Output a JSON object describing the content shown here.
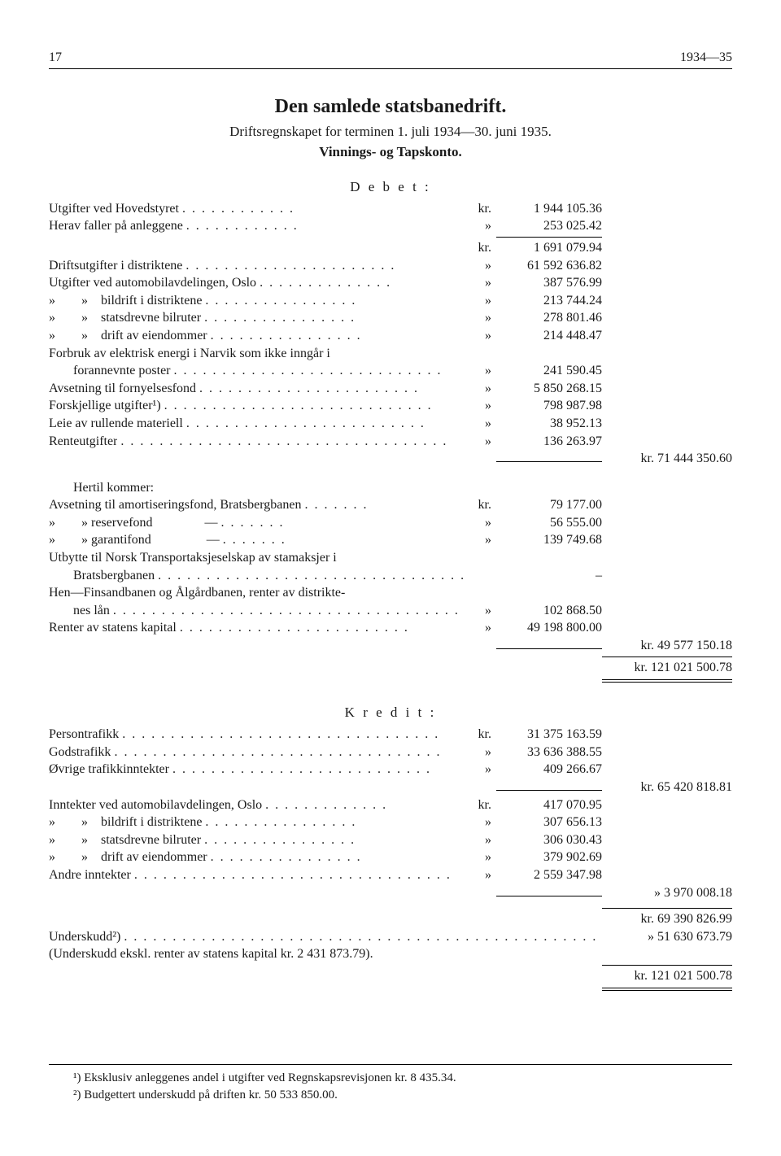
{
  "header": {
    "page": "17",
    "year": "1934—35"
  },
  "title": "Den samlede statsbanedrift.",
  "subtitle": "Driftsregnskapet for terminen 1. juli 1934—30. juni 1935.",
  "subtitle2": "Vinnings- og Tapskonto.",
  "debet_label": "D e b e t :",
  "kredit_label": "K r e d i t :",
  "debet": {
    "l1": {
      "label": "Utgifter ved Hovedstyret",
      "cur": "kr.",
      "val": "1 944 105.36"
    },
    "l2": {
      "label": "Herav faller på anleggene",
      "cur": "»",
      "val": "253 025.42"
    },
    "l3": {
      "cur": "kr.",
      "val": "1 691 079.94"
    },
    "l4": {
      "label": "Driftsutgifter i distriktene",
      "cur": "»",
      "val": "61 592 636.82"
    },
    "l5": {
      "label": "Utgifter ved automobilavdelingen, Oslo",
      "cur": "»",
      "val": "387 576.99"
    },
    "l6": {
      "label": "»        »    bildrift i distriktene",
      "cur": "»",
      "val": "213 744.24"
    },
    "l7": {
      "label": "»        »    statsdrevne bilruter",
      "cur": "»",
      "val": "278 801.46"
    },
    "l8": {
      "label": "»        »    drift av eiendommer",
      "cur": "»",
      "val": "214 448.47"
    },
    "l9a": {
      "label": "Forbruk av elektrisk energi i Narvik som ikke inngår i"
    },
    "l9b": {
      "label": "forannevnte poster",
      "cur": "»",
      "val": "241 590.45"
    },
    "l10": {
      "label": "Avsetning til fornyelsesfond",
      "cur": "»",
      "val": "5 850 268.15"
    },
    "l11": {
      "label": "Forskjellige utgifter¹)",
      "cur": "»",
      "val": "798 987.98"
    },
    "l12": {
      "label": "Leie av rullende materiell",
      "cur": "»",
      "val": "38 952.13"
    },
    "l13": {
      "label": "Renteutgifter",
      "cur": "»",
      "val": "136 263.97"
    },
    "total1": {
      "cur": "kr.",
      "val": "71 444 350.60"
    }
  },
  "hertil_label": "Hertil kommer:",
  "hertil": {
    "l1": {
      "label": "Avsetning til amortiseringsfond, Bratsbergbanen",
      "cur": "kr.",
      "val": "79 177.00"
    },
    "l2": {
      "label": "»        » reservefond                —",
      "cur": "»",
      "val": "56 555.00"
    },
    "l3": {
      "label": "»        » garantifond                 —",
      "cur": "»",
      "val": "139 749.68"
    },
    "l4a": {
      "label": "Utbytte til Norsk Transportaksjeselskap av stamaksjer i"
    },
    "l4b": {
      "label": "Bratsbergbanen",
      "val": "–"
    },
    "l5a": {
      "label": "Hen—Finsandbanen og Ålgårdbanen, renter av distrikte-"
    },
    "l5b": {
      "label": "nes lån",
      "cur": "»",
      "val": "102 868.50"
    },
    "l6": {
      "label": "Renter av statens kapital",
      "cur": "»",
      "val": "49 198 800.00"
    },
    "total2": {
      "cur": "kr.",
      "val": "49 577 150.18"
    },
    "grand": {
      "cur": "kr.",
      "val": "121 021 500.78"
    }
  },
  "kredit": {
    "l1": {
      "label": "Persontrafikk",
      "cur": "kr.",
      "val": "31 375 163.59"
    },
    "l2": {
      "label": "Godstrafikk",
      "cur": "»",
      "val": "33 636 388.55"
    },
    "l3": {
      "label": "Øvrige trafikkinntekter",
      "cur": "»",
      "val": "409 266.67"
    },
    "total3": {
      "cur": "kr.",
      "val": "65 420 818.81"
    },
    "l4": {
      "label": "Inntekter ved automobilavdelingen, Oslo",
      "cur": "kr.",
      "val": "417 070.95"
    },
    "l5": {
      "label": "»        »    bildrift i distriktene",
      "cur": "»",
      "val": "307 656.13"
    },
    "l6": {
      "label": "»        »    statsdrevne bilruter",
      "cur": "»",
      "val": "306 030.43"
    },
    "l7": {
      "label": "»        »    drift av eiendommer",
      "cur": "»",
      "val": "379 902.69"
    },
    "l8": {
      "label": "Andre inntekter",
      "cur": "»",
      "val": "2 559 347.98"
    },
    "total4": {
      "cur": "»",
      "val": "3 970 008.18"
    },
    "sum1": {
      "cur": "kr.",
      "val": "69 390 826.99"
    },
    "l9": {
      "label": "Underskudd²)",
      "cur": "»",
      "val": "51 630 673.79"
    },
    "note": "(Underskudd ekskl. renter av statens kapital kr. 2 431 873.79).",
    "grand": {
      "cur": "kr.",
      "val": "121 021 500.78"
    }
  },
  "footnotes": {
    "f1": "¹) Eksklusiv anleggenes andel i utgifter ved Regnskapsrevisjonen kr. 8 435.34.",
    "f2": "²) Budgettert underskudd på driften kr. 50 533 850.00."
  }
}
